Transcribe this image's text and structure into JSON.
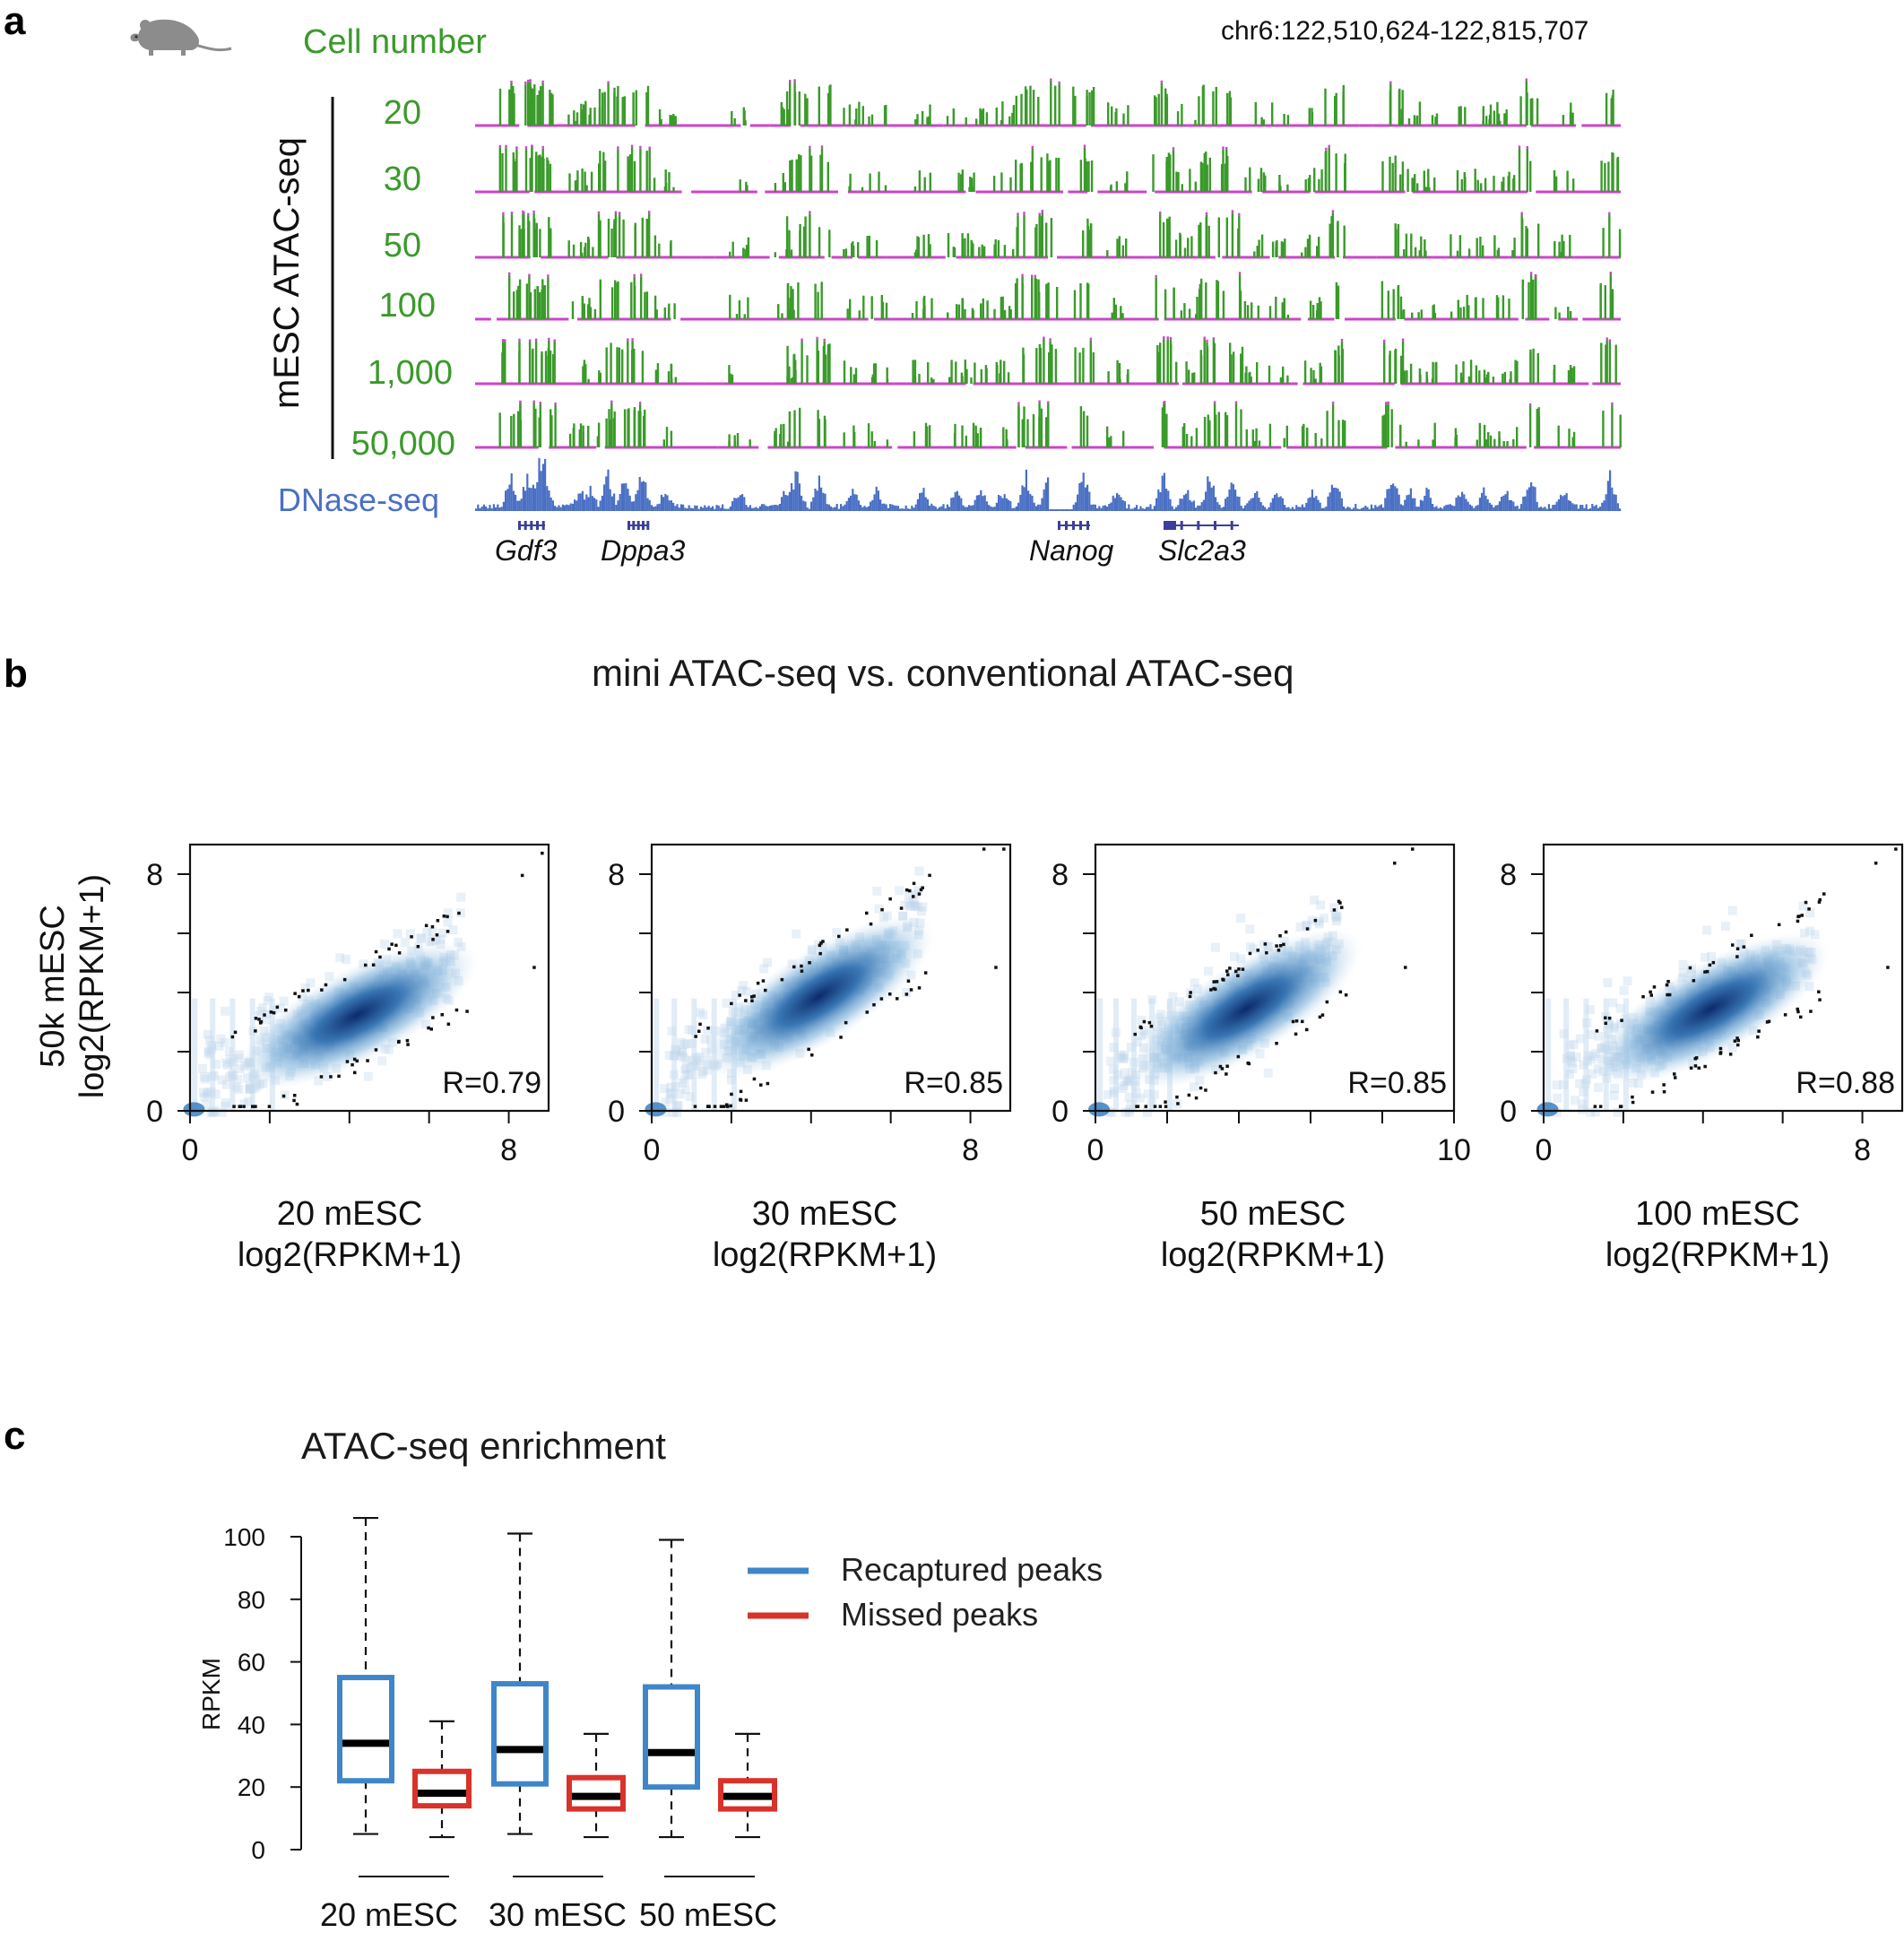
{
  "panels": {
    "a": {
      "letter": "a",
      "cell_number_header": "Cell number",
      "locus": "chr6:122,510,624-122,815,707",
      "y_group_label": "mESC ATAC-seq",
      "tracks": [
        "20",
        "30",
        "50",
        "100",
        "1,000",
        "50,000"
      ],
      "dnase_label": "DNase-seq",
      "genes": [
        "Gdf3",
        "Dppa3",
        "Nanog",
        "Slc2a3"
      ],
      "icon": "mouse-icon"
    },
    "b": {
      "letter": "b",
      "title": "mini ATAC-seq vs. conventional ATAC-seq",
      "y_label_line1": "50k mESC",
      "y_label_line2": "log2(RPKM+1)"
    },
    "c": {
      "letter": "c",
      "title": "ATAC-seq enrichment",
      "y_label": "RPKM",
      "legend": [
        {
          "label": "Recaptured peaks",
          "color": "#3f86c8"
        },
        {
          "label": "Missed peaks",
          "color": "#d9322a"
        }
      ]
    }
  },
  "colors": {
    "atac_green": "#3a9a2a",
    "atac_magenta": "#cc44cc",
    "dnase_blue": "#4a6fc4",
    "density_dark": "#0b2a6b"
  },
  "chart_data": [
    {
      "type": "scatter",
      "title": "",
      "x_label_line1": "20 mESC",
      "x_label_line2": "log2(RPKM+1)",
      "ylabel": "50k mESC log2(RPKM+1)",
      "xlim": [
        0,
        9
      ],
      "ylim": [
        0,
        9
      ],
      "x_tick_labels": [
        0,
        8
      ],
      "y_tick_labels": [
        0,
        8
      ],
      "annotation": "R=0.79",
      "slope": 0.7
    },
    {
      "type": "scatter",
      "title": "",
      "x_label_line1": "30 mESC",
      "x_label_line2": "log2(RPKM+1)",
      "ylabel": "50k mESC log2(RPKM+1)",
      "xlim": [
        0,
        9
      ],
      "ylim": [
        0,
        9
      ],
      "x_tick_labels": [
        0,
        8
      ],
      "y_tick_labels": [
        0,
        8
      ],
      "annotation": "R=0.85",
      "slope": 0.85
    },
    {
      "type": "scatter",
      "title": "",
      "x_label_line1": "50 mESC",
      "x_label_line2": "log2(RPKM+1)",
      "ylabel": "50k mESC log2(RPKM+1)",
      "xlim": [
        0,
        10
      ],
      "ylim": [
        0,
        9
      ],
      "x_tick_labels": [
        0,
        10
      ],
      "y_tick_labels": [
        0,
        8
      ],
      "annotation": "R=0.85",
      "slope": 0.75
    },
    {
      "type": "scatter",
      "title": "",
      "x_label_line1": "100 mESC",
      "x_label_line2": "log2(RPKM+1)",
      "ylabel": "50k mESC log2(RPKM+1)",
      "xlim": [
        0,
        9
      ],
      "ylim": [
        0,
        9
      ],
      "x_tick_labels": [
        0,
        8
      ],
      "y_tick_labels": [
        0,
        8
      ],
      "annotation": "R=0.88",
      "slope": 0.75
    },
    {
      "type": "box",
      "title": "ATAC-seq enrichment",
      "ylabel": "RPKM",
      "ylim": [
        0,
        105
      ],
      "y_ticks": [
        0,
        20,
        40,
        60,
        80,
        100
      ],
      "categories": [
        "20 mESC",
        "30 mESC",
        "50 mESC"
      ],
      "series": [
        {
          "name": "Recaptured peaks",
          "color": "#3f86c8",
          "boxes": [
            {
              "min": 5,
              "q1": 22,
              "median": 34,
              "q3": 55,
              "max": 106
            },
            {
              "min": 5,
              "q1": 21,
              "median": 32,
              "q3": 53,
              "max": 101
            },
            {
              "min": 4,
              "q1": 20,
              "median": 31,
              "q3": 52,
              "max": 99
            }
          ]
        },
        {
          "name": "Missed peaks",
          "color": "#d9322a",
          "boxes": [
            {
              "min": 4,
              "q1": 14,
              "median": 18,
              "q3": 25,
              "max": 41
            },
            {
              "min": 4,
              "q1": 13,
              "median": 17,
              "q3": 23,
              "max": 37
            },
            {
              "min": 4,
              "q1": 13,
              "median": 17,
              "q3": 22,
              "max": 37
            }
          ]
        }
      ]
    }
  ]
}
